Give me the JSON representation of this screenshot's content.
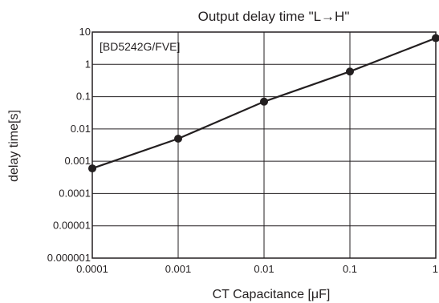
{
  "chart_data": {
    "type": "line",
    "title": "Output delay time \"L→H\"",
    "xlabel": "CT Capacitance [μF]",
    "ylabel": "delay time[s]",
    "annotation": "[BD5242G/FVE]",
    "x_scale": "log",
    "y_scale": "log",
    "xlim": [
      0.0001,
      1
    ],
    "ylim": [
      1e-06,
      10
    ],
    "grid": true,
    "x_ticks": [
      {
        "value": 0.0001,
        "label": "0.0001"
      },
      {
        "value": 0.001,
        "label": "0.001"
      },
      {
        "value": 0.01,
        "label": "0.01"
      },
      {
        "value": 0.1,
        "label": "0.1"
      },
      {
        "value": 1,
        "label": "1"
      }
    ],
    "y_ticks": [
      {
        "value": 10,
        "label": "10"
      },
      {
        "value": 1,
        "label": "1"
      },
      {
        "value": 0.1,
        "label": "0.1"
      },
      {
        "value": 0.01,
        "label": "0.01"
      },
      {
        "value": 0.001,
        "label": "0.001"
      },
      {
        "value": 0.0001,
        "label": "0.0001"
      },
      {
        "value": 1e-05,
        "label": "0.00001"
      },
      {
        "value": 1e-06,
        "label": "0.000001"
      }
    ],
    "series": [
      {
        "x": [
          0.0001,
          0.001,
          0.01,
          0.1,
          1
        ],
        "y": [
          0.0006,
          0.005,
          0.07,
          0.6,
          6.5
        ]
      }
    ],
    "colors": {
      "line": "#231f20",
      "grid": "#231f20",
      "text": "#231f20"
    }
  }
}
